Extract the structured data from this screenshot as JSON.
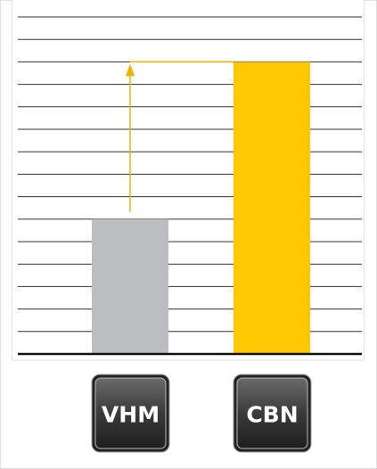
{
  "chart_data": {
    "type": "bar",
    "categories": [
      "VHM",
      "CBN"
    ],
    "series": [
      {
        "values": [
          6,
          13
        ],
        "colors": [
          "#bcbdc0",
          "#ffc800"
        ]
      }
    ],
    "ylim": [
      0,
      15
    ],
    "yticks": [
      0,
      1,
      2,
      3,
      4,
      5,
      6,
      7,
      8,
      9,
      10,
      11,
      12,
      13,
      14,
      15
    ],
    "grid": true
  }
}
